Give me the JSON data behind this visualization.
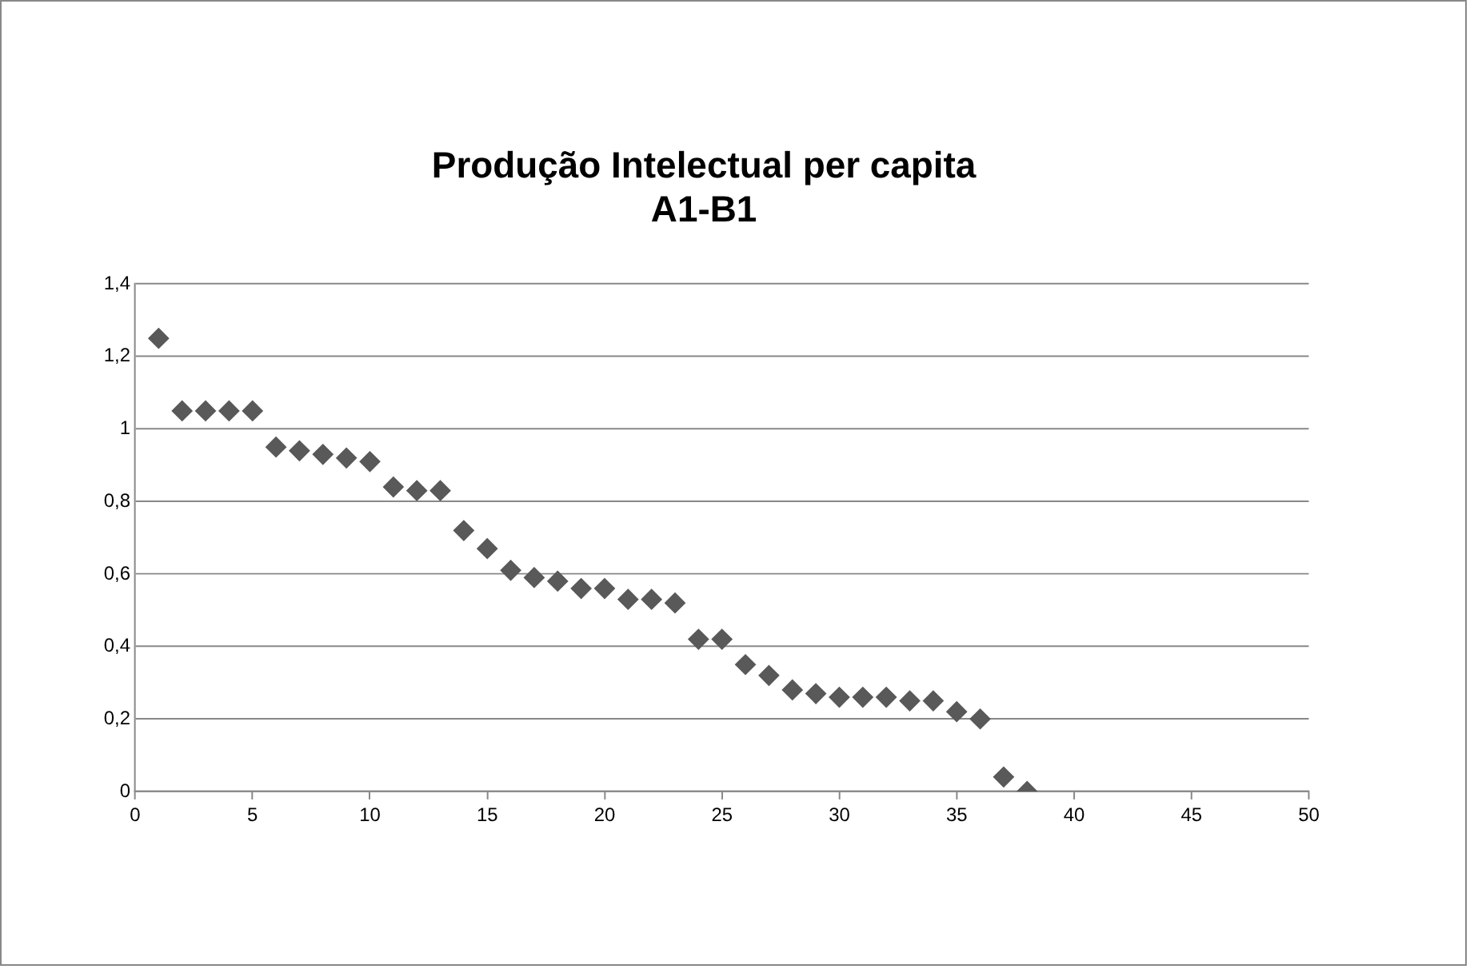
{
  "chart_data": {
    "type": "scatter",
    "title": "Produção Intelectual per capita\nA1-B1",
    "x": [
      1,
      2,
      3,
      4,
      5,
      6,
      7,
      8,
      9,
      10,
      11,
      12,
      13,
      14,
      15,
      16,
      17,
      18,
      19,
      20,
      21,
      22,
      23,
      24,
      25,
      26,
      27,
      28,
      29,
      30,
      31,
      32,
      33,
      34,
      35,
      36,
      37,
      38
    ],
    "values": [
      1.25,
      1.05,
      1.05,
      1.05,
      1.05,
      0.95,
      0.94,
      0.93,
      0.92,
      0.91,
      0.84,
      0.83,
      0.83,
      0.72,
      0.67,
      0.61,
      0.59,
      0.58,
      0.56,
      0.56,
      0.53,
      0.53,
      0.52,
      0.42,
      0.42,
      0.35,
      0.32,
      0.28,
      0.27,
      0.26,
      0.26,
      0.26,
      0.25,
      0.25,
      0.22,
      0.2,
      0.04,
      0
    ],
    "color": "#595959",
    "marker": "diamond",
    "xlim": [
      0,
      50
    ],
    "xticks": [
      0,
      5,
      10,
      15,
      20,
      25,
      30,
      35,
      40,
      45,
      50
    ],
    "ylim": [
      0,
      1.4
    ],
    "yticks": [
      0,
      {
        "value": 0.2,
        "label": "0,2"
      },
      {
        "value": 0.4,
        "label": "0,4"
      },
      {
        "value": 0.6,
        "label": "0,6"
      },
      {
        "value": 0.8,
        "label": "0,8"
      },
      1,
      {
        "value": 1.2,
        "label": "1,2"
      },
      {
        "value": 1.4,
        "label": "1,4"
      }
    ],
    "grid": "y",
    "legend": false
  }
}
